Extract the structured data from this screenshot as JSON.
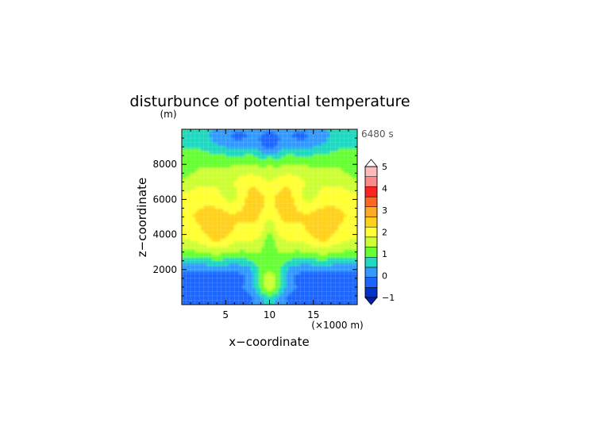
{
  "chart_data": {
    "type": "heatmap",
    "title": "disturbunce of potential temperature",
    "xlabel": "x−coordinate",
    "ylabel": "z−coordinate",
    "y_unit": "(m)",
    "x_unit": "(×1000 m)",
    "time_label": "6480 s",
    "xlim": [
      0,
      20
    ],
    "ylim": [
      0,
      10000
    ],
    "x_ticks": [
      5,
      10,
      15
    ],
    "x_tick_labels": [
      "5",
      "10",
      "15"
    ],
    "y_ticks": [
      2000,
      4000,
      6000,
      8000
    ],
    "y_tick_labels": [
      "2000",
      "4000",
      "6000",
      "8000"
    ],
    "colorbar": {
      "levels": [
        -1,
        -0.5,
        0,
        0.5,
        1,
        1.5,
        2,
        2.5,
        3,
        3.5,
        4,
        4.5,
        5
      ],
      "labels": [
        "−1",
        "0",
        "1",
        "2",
        "3",
        "4",
        "5"
      ],
      "colors": [
        "#0033cc",
        "#1a66ff",
        "#3399ff",
        "#1fd9c0",
        "#66ff33",
        "#ccff33",
        "#ffff33",
        "#ffd11a",
        "#ffaa22",
        "#ff6622",
        "#ff2222",
        "#ff8888",
        "#ffbbbb"
      ],
      "under_color": "#0022aa",
      "over_color": "#ffffff"
    },
    "grid": true
  }
}
